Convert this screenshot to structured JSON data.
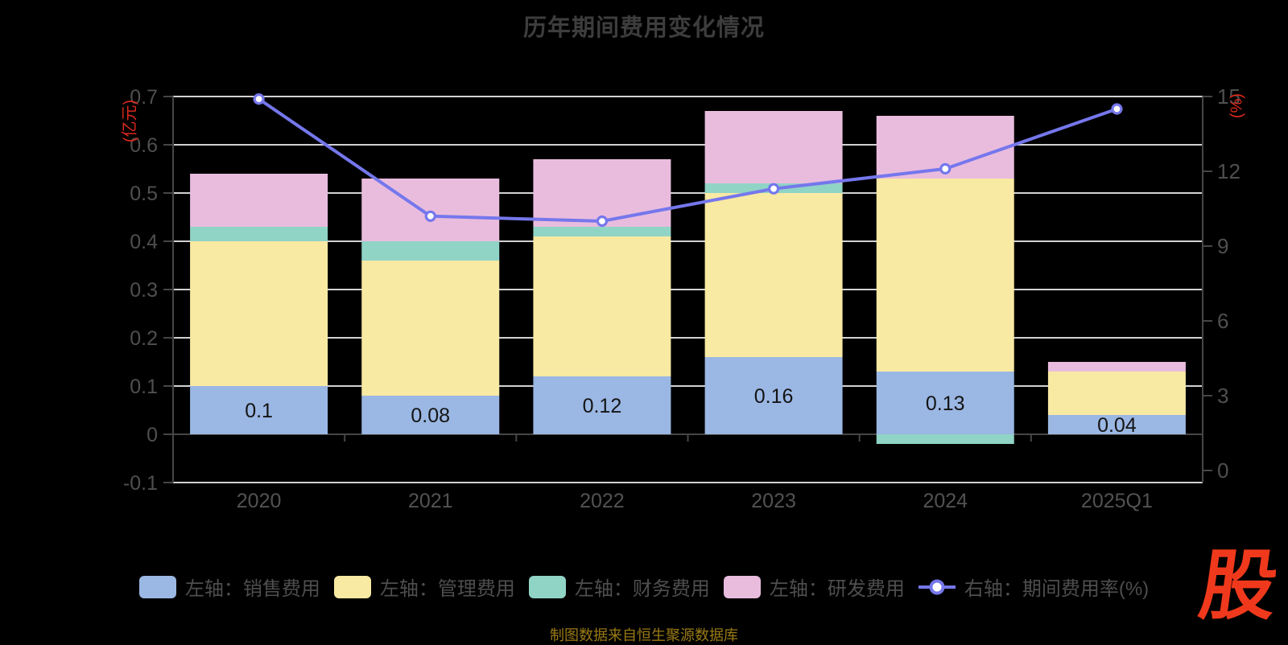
{
  "title": "历年期间费用变化情况",
  "source_note": "制图数据来自恒生聚源数据库",
  "logo_text": "股",
  "colors": {
    "background": "#000000",
    "title": "#3d3d3d",
    "axis_line": "#464646",
    "grid_line": "#d2d2d2",
    "axis_label": "#4f4f4f",
    "x_label": "#525252",
    "axis_name_red": "#dc291c",
    "bar_label": "#141414",
    "legend_text": "#4e4e4e",
    "source_text": "#9a7a15",
    "logo_red": "#f0391c"
  },
  "chart_data": {
    "type": "bar",
    "subtype": "stacked bars (left axis) + line (right axis)",
    "categories": [
      "2020",
      "2021",
      "2022",
      "2023",
      "2024",
      "2025Q1"
    ],
    "series": [
      {
        "name": "左轴：销售费用",
        "type": "bar",
        "stack": "left",
        "color": "#9bb7e3",
        "values": [
          0.1,
          0.08,
          0.12,
          0.16,
          0.13,
          0.04
        ],
        "labels": [
          "0.1",
          "0.08",
          "0.12",
          "0.16",
          "0.13",
          "0.04"
        ]
      },
      {
        "name": "左轴：管理费用",
        "type": "bar",
        "stack": "left",
        "color": "#f8e9a3",
        "values": [
          0.3,
          0.28,
          0.29,
          0.34,
          0.4,
          0.09
        ]
      },
      {
        "name": "左轴：财务费用",
        "type": "bar",
        "stack": "left",
        "color": "#90d4c6",
        "values": [
          0.03,
          0.04,
          0.02,
          0.02,
          -0.02,
          0
        ]
      },
      {
        "name": "左轴：研发费用",
        "type": "bar",
        "stack": "left",
        "color": "#e9bcde",
        "values": [
          0.11,
          0.13,
          0.14,
          0.15,
          0.13,
          0.02
        ]
      },
      {
        "name": "右轴：期间费用率(%)",
        "type": "line",
        "color": "#7577ec",
        "values": [
          14.9,
          10.2,
          10.0,
          11.3,
          12.1,
          14.5
        ]
      }
    ],
    "left_axis": {
      "label": "(亿元)",
      "min": -0.1,
      "max": 0.7,
      "ticks": [
        0.7,
        0.6,
        0.5,
        0.4,
        0.3,
        0.2,
        0.1,
        0,
        -0.1
      ]
    },
    "right_axis": {
      "label": "(%)",
      "min": 0,
      "max": 15,
      "ticks": [
        15,
        12,
        9,
        6,
        3,
        0
      ]
    },
    "legend_position": "bottom",
    "grid": true
  }
}
